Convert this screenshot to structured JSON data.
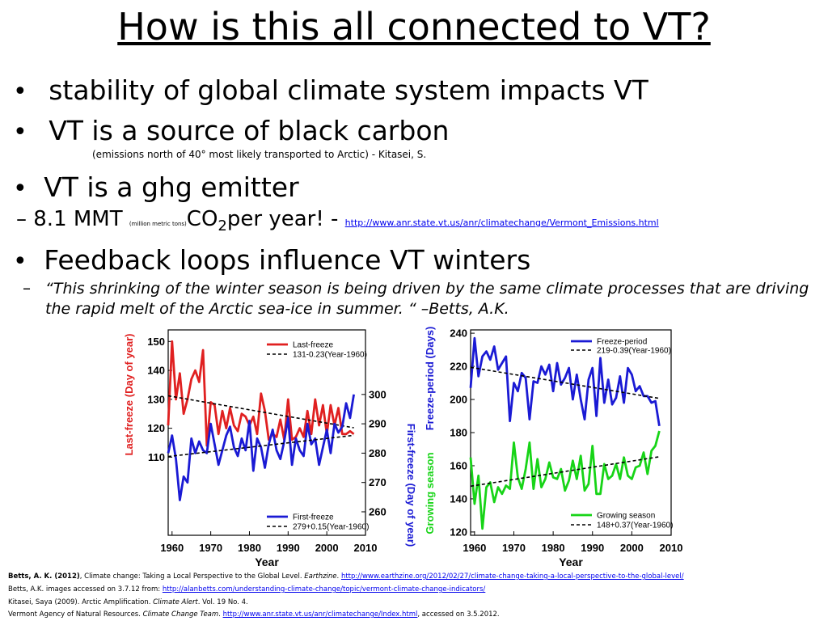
{
  "slide": {
    "title": "How is this all connected to VT?",
    "bullets": [
      "stability of global climate system impacts VT",
      "VT is a source of black carbon",
      "VT is a ghg emitter",
      "Feedback loops influence VT winters"
    ],
    "note_black_carbon": "(emissions north of 40° most likely transported to Arctic) - Kitasei, S.",
    "sub_emitter": {
      "dash": "–",
      "amount": "8.1 MMT",
      "small": "(million metric tons)",
      "co": "CO",
      "sub2": "2",
      "rest": "per year!  -",
      "link": "http://www.anr.state.vt.us/anr/climatechange/Vermont_Emissions.html"
    },
    "quote_dash": "–",
    "quote": "“This shrinking of the winter season is being driven by the same climate processes that are driving the rapid melt of the Arctic sea-ice in summer. “ –Betts, A.K.",
    "bullet_char": "•"
  },
  "references": [
    {
      "author": "Betts, A. K. (2012)",
      "text": ", Climate change: Taking a Local Perspective to the Global Level. ",
      "journal": "Earthzine",
      "text2": ". ",
      "link": "http://www.earthzine.org/2012/02/27/climate-change-taking-a-local-perspective-to-the-global-level/",
      "after": ""
    },
    {
      "author": "",
      "text": "Betts, A.K. images  accessed on 3.7.12 from: ",
      "journal": "",
      "text2": "",
      "link": "http://alanbetts.com/understanding-climate-change/topic/vermont-climate-change-indicators/",
      "after": ""
    },
    {
      "author": "",
      "text": "Kitasei, Saya (2009).  Arctic Amplification. ",
      "journal": "Climate Alert",
      "text2": ". Vol. 19 No. 4.",
      "link": "",
      "after": ""
    },
    {
      "author": "",
      "text": "Vermont Agency of Natural Resources. ",
      "journal": "Climate Change Team",
      "text2": ". ",
      "link": "http://www.anr.state.vt.us/anr/climatechange/Index.html",
      "after": ", accessed on 3.5.2012."
    }
  ],
  "chart_data": [
    {
      "type": "line",
      "xlabel": "Year",
      "xticks": [
        1960,
        1970,
        1980,
        1990,
        2000,
        2010
      ],
      "xlim": [
        1959,
        2010
      ],
      "left_axis": {
        "label": "Last-freeze (Day of year)",
        "color": "#e02020",
        "ticks": [
          110,
          120,
          130,
          140,
          150
        ],
        "ylim": [
          83,
          154
        ]
      },
      "right_axis": {
        "label": "First-freeze (Day of year)",
        "color": "#1a1ad4",
        "ticks": [
          260,
          270,
          280,
          290,
          300
        ],
        "ylim": [
          252,
          322
        ]
      },
      "series": [
        {
          "name": "Last-freeze",
          "axis": "left",
          "color": "#e02020",
          "x": [
            1959,
            1960,
            1961,
            1962,
            1963,
            1964,
            1965,
            1966,
            1967,
            1968,
            1969,
            1970,
            1971,
            1972,
            1973,
            1974,
            1975,
            1976,
            1977,
            1978,
            1979,
            1980,
            1981,
            1982,
            1983,
            1984,
            1985,
            1986,
            1987,
            1988,
            1989,
            1990,
            1991,
            1992,
            1993,
            1994,
            1995,
            1996,
            1997,
            1998,
            1999,
            2000,
            2001,
            2002,
            2003,
            2004,
            2005,
            2006,
            2007
          ],
          "values": [
            121,
            150,
            130,
            139,
            125,
            130,
            137,
            140,
            136,
            147,
            114,
            129,
            128,
            118,
            126,
            120,
            127,
            121,
            119,
            125,
            124,
            121,
            124,
            118,
            132,
            126,
            116,
            118,
            117,
            123,
            116,
            130,
            116,
            117,
            120,
            117,
            126,
            118,
            130,
            121,
            128,
            118,
            128,
            121,
            127,
            118,
            118,
            119,
            118
          ]
        },
        {
          "name": "131-0.23(Year-1960)",
          "axis": "left",
          "color": "#000000",
          "dashed": true,
          "intercept": 131,
          "slope": -0.23,
          "x": [
            1959,
            2007
          ]
        },
        {
          "name": "First-freeze",
          "axis": "right",
          "color": "#1a1ad4",
          "x": [
            1959,
            1960,
            1961,
            1962,
            1963,
            1964,
            1965,
            1966,
            1967,
            1968,
            1969,
            1970,
            1971,
            1972,
            1973,
            1974,
            1975,
            1976,
            1977,
            1978,
            1979,
            1980,
            1981,
            1982,
            1983,
            1984,
            1985,
            1986,
            1987,
            1988,
            1989,
            1990,
            1991,
            1992,
            1993,
            1994,
            1995,
            1996,
            1997,
            1998,
            1999,
            2000,
            2001,
            2002,
            2003,
            2004,
            2005,
            2006,
            2007
          ],
          "values": [
            280,
            286,
            278,
            264,
            272,
            270,
            285,
            280,
            284,
            281,
            280,
            290,
            283,
            276,
            281,
            286,
            289,
            282,
            279,
            285,
            281,
            291,
            274,
            285,
            282,
            275,
            283,
            288,
            281,
            278,
            284,
            292,
            276,
            285,
            281,
            279,
            290,
            283,
            285,
            276,
            282,
            288,
            280,
            290,
            287,
            289,
            297,
            292,
            300
          ]
        },
        {
          "name": "279+0.15(Year-1960)",
          "axis": "right",
          "color": "#000000",
          "dashed": true,
          "intercept": 279,
          "slope": 0.15,
          "x": [
            1959,
            2007
          ]
        }
      ]
    },
    {
      "type": "line",
      "xlabel": "Year",
      "xticks": [
        1960,
        1970,
        1980,
        1990,
        2000,
        2010
      ],
      "xlim": [
        1959,
        2010
      ],
      "ylim": [
        118,
        242
      ],
      "yticks": [
        120,
        140,
        160,
        180,
        200,
        220,
        240
      ],
      "ylabel_top": {
        "text": "Freeze-period  (Days)",
        "color": "#1a1ad4"
      },
      "ylabel_bottom": {
        "text": "Growing season",
        "color": "#17d417"
      },
      "series": [
        {
          "name": "Freeze-period",
          "color": "#1a1ad4",
          "x": [
            1959,
            1960,
            1961,
            1962,
            1963,
            1964,
            1965,
            1966,
            1967,
            1968,
            1969,
            1970,
            1971,
            1972,
            1973,
            1974,
            1975,
            1976,
            1977,
            1978,
            1979,
            1980,
            1981,
            1982,
            1983,
            1984,
            1985,
            1986,
            1987,
            1988,
            1989,
            1990,
            1991,
            1992,
            1993,
            1994,
            1995,
            1996,
            1997,
            1998,
            1999,
            2000,
            2001,
            2002,
            2003,
            2004,
            2005,
            2006,
            2007
          ],
          "values": [
            207,
            237,
            214,
            226,
            229,
            224,
            232,
            218,
            222,
            226,
            187,
            210,
            205,
            216,
            213,
            188,
            211,
            210,
            220,
            215,
            221,
            205,
            222,
            209,
            213,
            219,
            200,
            215,
            200,
            188,
            212,
            219,
            190,
            225,
            198,
            212,
            197,
            201,
            214,
            198,
            219,
            215,
            205,
            208,
            202,
            202,
            198,
            199,
            184
          ]
        },
        {
          "name": "219-0.39(Year-1960)",
          "color": "#000000",
          "dashed": true,
          "intercept": 219,
          "slope": -0.39,
          "x": [
            1959,
            2007
          ]
        },
        {
          "name": "Growing season",
          "color": "#17d417",
          "x": [
            1959,
            1960,
            1961,
            1962,
            1963,
            1964,
            1965,
            1966,
            1967,
            1968,
            1969,
            1970,
            1971,
            1972,
            1973,
            1974,
            1975,
            1976,
            1977,
            1978,
            1979,
            1980,
            1981,
            1982,
            1983,
            1984,
            1985,
            1986,
            1987,
            1988,
            1989,
            1990,
            1991,
            1992,
            1993,
            1994,
            1995,
            1996,
            1997,
            1998,
            1999,
            2000,
            2001,
            2002,
            2003,
            2004,
            2005,
            2006,
            2007
          ],
          "values": [
            165,
            137,
            154,
            122,
            147,
            150,
            138,
            147,
            143,
            148,
            146,
            174,
            153,
            146,
            158,
            174,
            146,
            164,
            147,
            152,
            162,
            153,
            152,
            158,
            145,
            151,
            163,
            152,
            166,
            145,
            149,
            172,
            143,
            143,
            161,
            152,
            154,
            161,
            152,
            165,
            154,
            152,
            159,
            160,
            168,
            155,
            169,
            172,
            181
          ]
        },
        {
          "name": "148+0.37(Year-1960)",
          "color": "#000000",
          "dashed": true,
          "intercept": 148,
          "slope": 0.37,
          "x": [
            1959,
            2007
          ]
        }
      ]
    }
  ]
}
